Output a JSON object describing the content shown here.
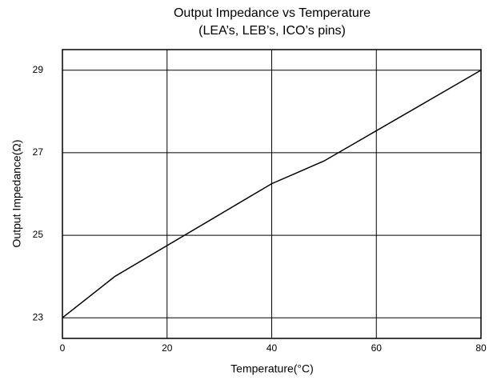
{
  "chart_data": {
    "type": "line",
    "title": "Output Impedance vs Temperature",
    "subtitle": "(LEA’s, LEB’s, ICO’s pins)",
    "x_label": "Temperature(°C)",
    "y_label": "Output Impedance(Ω)",
    "x": [
      0,
      10,
      40,
      50,
      80
    ],
    "series": [
      {
        "name": "Output Impedance",
        "color": "#000000",
        "values": [
          23,
          24,
          26.25,
          26.8,
          29
        ]
      }
    ],
    "xlim": [
      0,
      80
    ],
    "xticks": [
      0,
      20,
      40,
      60,
      80
    ],
    "ylim": [
      22.5,
      29.5
    ],
    "yticks": [
      23,
      25,
      27,
      29
    ],
    "grid": true
  }
}
